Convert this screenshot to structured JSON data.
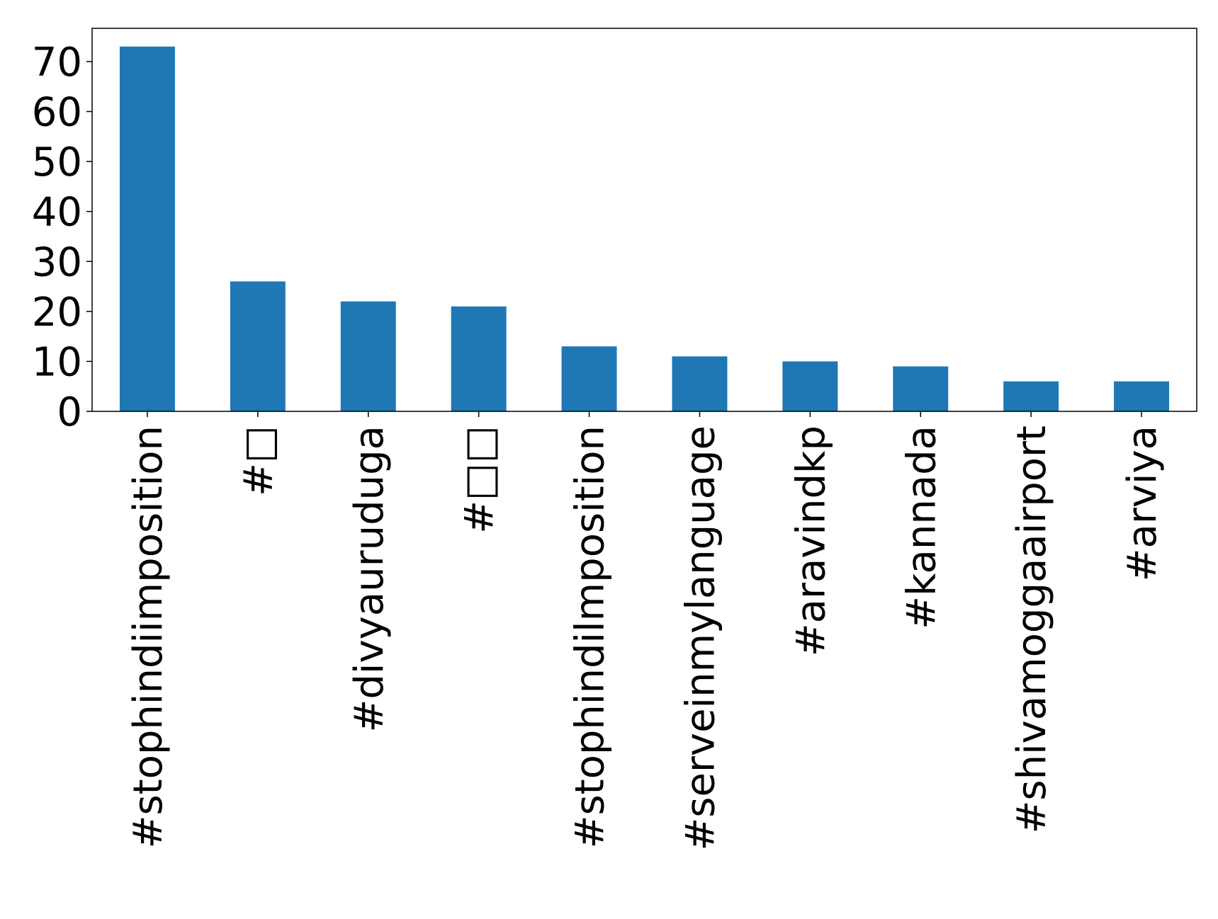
{
  "chart_data": {
    "type": "bar",
    "categories": [
      "#stophindiimposition",
      "#□",
      "#divyauruduga",
      "#□□",
      "#stophindilmposition",
      "#serveinmylanguage",
      "#aravindkp",
      "#kannada",
      "#shivamoggaairport",
      "#arviya"
    ],
    "values": [
      73,
      26,
      22,
      21,
      13,
      11,
      10,
      9,
      6,
      6
    ],
    "ylim": [
      0,
      76.65
    ],
    "yticks": [
      0,
      10,
      20,
      30,
      40,
      50,
      60,
      70
    ],
    "bar_color": "#1f77b4",
    "grid": false,
    "legend": "none"
  }
}
